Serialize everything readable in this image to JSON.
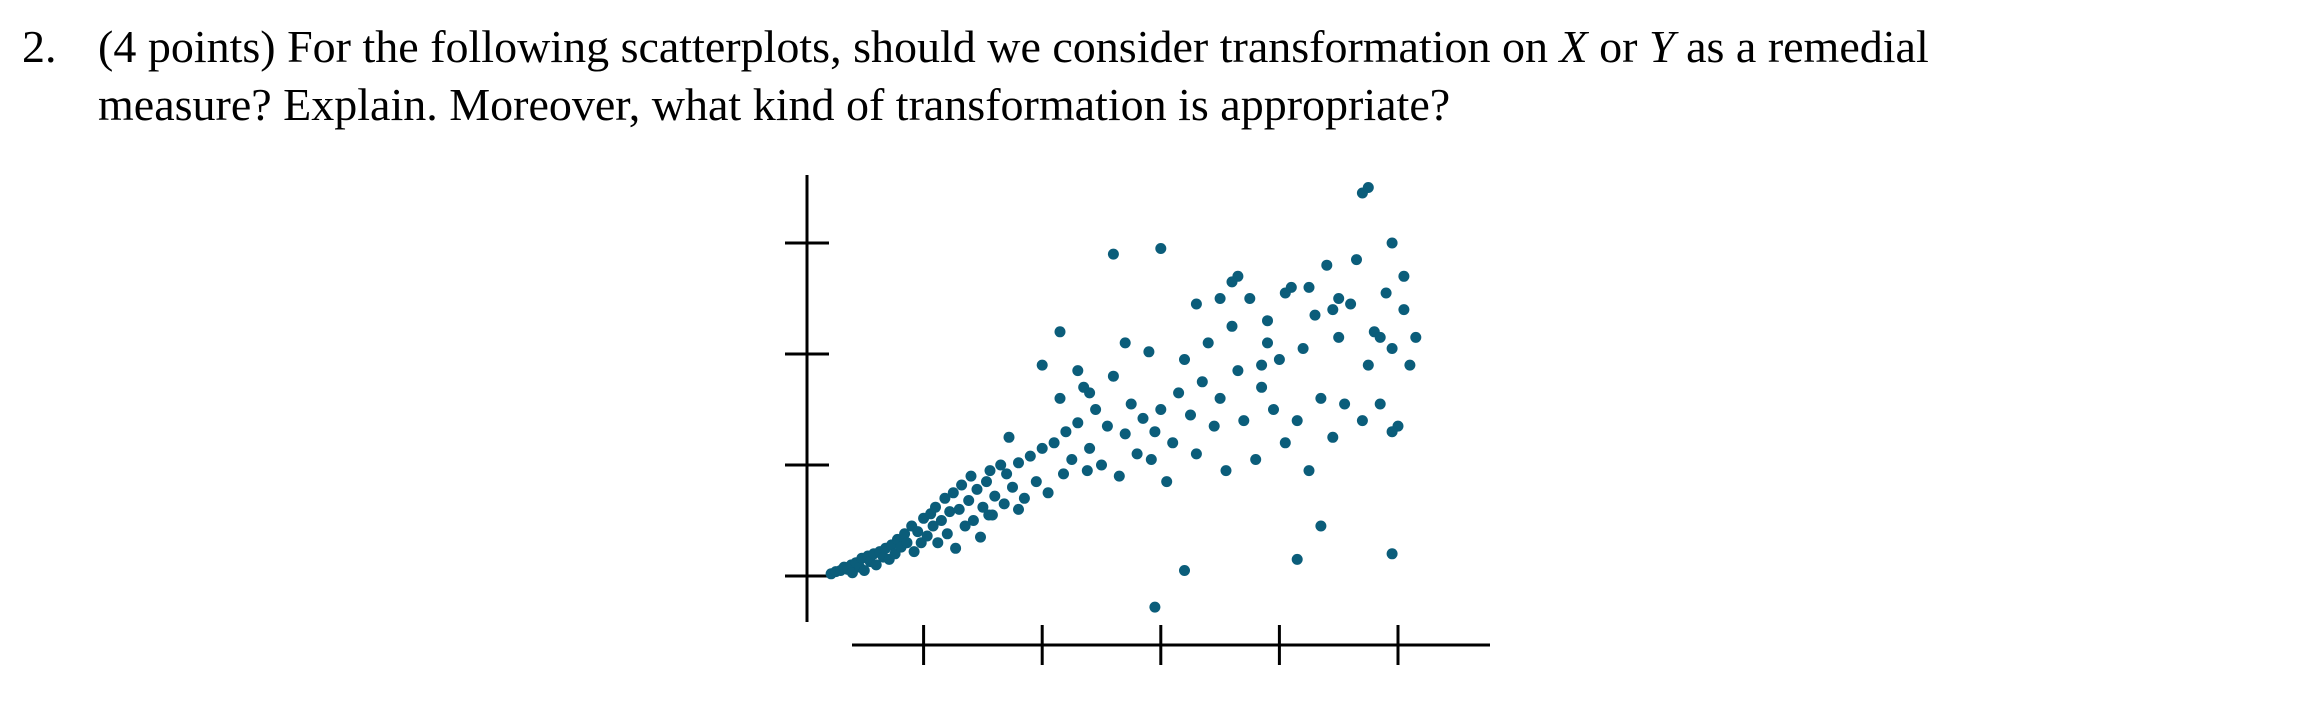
{
  "question": {
    "number": "2.",
    "line1_part1": "(4 points) For the following scatterplots, should we consider transformation on ",
    "var_x": "X",
    "line1_part2": " or ",
    "var_y": "Y",
    "line1_part3": " as a remedial",
    "line2": "measure? Explain. Moreover, what kind of transformation is appropriate?"
  },
  "colors": {
    "point": "#0b5d7a",
    "axis": "#000000"
  },
  "chart_data": {
    "type": "scatter",
    "title": "",
    "xlabel": "",
    "ylabel": "",
    "x_ticks": [
      1,
      2,
      3,
      4,
      5
    ],
    "y_ticks": [
      1,
      2,
      3,
      4
    ],
    "xlim": [
      0,
      5.4
    ],
    "ylim": [
      0.7,
      4.6
    ],
    "grid": false,
    "legend": "none",
    "points": [
      [
        0.22,
        1.02
      ],
      [
        0.26,
        1.04
      ],
      [
        0.3,
        1.05
      ],
      [
        0.33,
        1.08
      ],
      [
        0.36,
        1.06
      ],
      [
        0.39,
        1.1
      ],
      [
        0.4,
        1.03
      ],
      [
        0.43,
        1.12
      ],
      [
        0.46,
        1.08
      ],
      [
        0.48,
        1.16
      ],
      [
        0.5,
        1.05
      ],
      [
        0.53,
        1.18
      ],
      [
        0.55,
        1.13
      ],
      [
        0.58,
        1.2
      ],
      [
        0.6,
        1.1
      ],
      [
        0.63,
        1.22
      ],
      [
        0.66,
        1.17
      ],
      [
        0.68,
        1.25
      ],
      [
        0.71,
        1.15
      ],
      [
        0.73,
        1.28
      ],
      [
        0.76,
        1.2
      ],
      [
        0.78,
        1.33
      ],
      [
        0.81,
        1.26
      ],
      [
        0.84,
        1.38
      ],
      [
        0.86,
        1.3
      ],
      [
        0.9,
        1.45
      ],
      [
        0.92,
        1.22
      ],
      [
        0.95,
        1.4
      ],
      [
        0.98,
        1.3
      ],
      [
        1.0,
        1.52
      ],
      [
        1.03,
        1.36
      ],
      [
        1.06,
        1.56
      ],
      [
        1.08,
        1.45
      ],
      [
        1.1,
        1.62
      ],
      [
        1.12,
        1.3
      ],
      [
        1.15,
        1.5
      ],
      [
        1.18,
        1.7
      ],
      [
        1.2,
        1.38
      ],
      [
        1.22,
        1.58
      ],
      [
        1.25,
        1.75
      ],
      [
        1.27,
        1.25
      ],
      [
        1.3,
        1.6
      ],
      [
        1.32,
        1.82
      ],
      [
        1.35,
        1.45
      ],
      [
        1.38,
        1.68
      ],
      [
        1.4,
        1.9
      ],
      [
        1.42,
        1.5
      ],
      [
        1.45,
        1.78
      ],
      [
        1.48,
        1.35
      ],
      [
        1.5,
        1.62
      ],
      [
        1.53,
        1.85
      ],
      [
        1.56,
        1.95
      ],
      [
        1.58,
        1.55
      ],
      [
        1.6,
        1.72
      ],
      [
        1.65,
        2.0
      ],
      [
        1.68,
        1.65
      ],
      [
        1.7,
        1.92
      ],
      [
        1.72,
        2.25
      ],
      [
        1.75,
        1.8
      ],
      [
        1.8,
        2.02
      ],
      [
        1.85,
        1.7
      ],
      [
        1.9,
        2.08
      ],
      [
        1.95,
        1.85
      ],
      [
        2.0,
        2.15
      ],
      [
        2.05,
        1.75
      ],
      [
        2.1,
        2.2
      ],
      [
        2.15,
        2.6
      ],
      [
        2.18,
        1.92
      ],
      [
        2.2,
        2.3
      ],
      [
        2.25,
        2.05
      ],
      [
        2.3,
        2.38
      ],
      [
        2.35,
        2.7
      ],
      [
        2.38,
        1.95
      ],
      [
        2.4,
        2.15
      ],
      [
        2.45,
        2.5
      ],
      [
        2.5,
        2.0
      ],
      [
        2.55,
        2.35
      ],
      [
        2.6,
        2.8
      ],
      [
        2.65,
        1.9
      ],
      [
        2.7,
        2.28
      ],
      [
        2.75,
        2.55
      ],
      [
        2.8,
        2.1
      ],
      [
        2.85,
        2.42
      ],
      [
        2.9,
        3.02
      ],
      [
        2.92,
        2.05
      ],
      [
        2.95,
        2.3
      ],
      [
        3.0,
        2.5
      ],
      [
        3.05,
        1.85
      ],
      [
        3.1,
        2.2
      ],
      [
        3.15,
        2.65
      ],
      [
        3.2,
        2.95
      ],
      [
        3.25,
        2.45
      ],
      [
        3.3,
        2.1
      ],
      [
        3.35,
        2.75
      ],
      [
        3.4,
        3.1
      ],
      [
        3.45,
        2.35
      ],
      [
        3.5,
        2.6
      ],
      [
        3.55,
        1.95
      ],
      [
        3.6,
        3.25
      ],
      [
        3.65,
        2.85
      ],
      [
        3.7,
        2.4
      ],
      [
        3.75,
        3.5
      ],
      [
        3.8,
        2.05
      ],
      [
        3.85,
        2.7
      ],
      [
        3.9,
        3.3
      ],
      [
        3.95,
        2.5
      ],
      [
        4.0,
        2.95
      ],
      [
        4.05,
        2.2
      ],
      [
        4.1,
        3.6
      ],
      [
        4.15,
        2.4
      ],
      [
        4.2,
        3.05
      ],
      [
        4.25,
        1.95
      ],
      [
        4.3,
        3.35
      ],
      [
        4.35,
        2.6
      ],
      [
        4.4,
        3.8
      ],
      [
        4.45,
        2.25
      ],
      [
        4.5,
        3.15
      ],
      [
        4.55,
        2.55
      ],
      [
        4.6,
        3.45
      ],
      [
        4.65,
        3.85
      ],
      [
        4.7,
        2.4
      ],
      [
        4.75,
        2.9
      ],
      [
        4.8,
        3.2
      ],
      [
        4.85,
        2.55
      ],
      [
        4.9,
        3.55
      ],
      [
        4.95,
        3.05
      ],
      [
        5.0,
        2.35
      ],
      [
        5.05,
        3.4
      ],
      [
        5.1,
        2.9
      ],
      [
        5.15,
        3.15
      ],
      [
        2.6,
        3.9
      ],
      [
        3.0,
        3.95
      ],
      [
        3.3,
        3.45
      ],
      [
        3.65,
        3.7
      ],
      [
        4.05,
        3.55
      ],
      [
        4.25,
        3.6
      ],
      [
        4.45,
        3.4
      ],
      [
        4.7,
        4.45
      ],
      [
        4.75,
        4.5
      ],
      [
        4.95,
        4.0
      ],
      [
        5.05,
        3.7
      ],
      [
        3.6,
        3.65
      ],
      [
        2.15,
        3.2
      ],
      [
        2.0,
        2.9
      ],
      [
        2.4,
        2.65
      ],
      [
        3.85,
        2.9
      ],
      [
        4.15,
        1.15
      ],
      [
        4.95,
        1.2
      ],
      [
        4.95,
        2.3
      ],
      [
        4.35,
        1.45
      ],
      [
        2.95,
        0.72
      ],
      [
        3.2,
        1.05
      ],
      [
        1.55,
        1.55
      ],
      [
        1.8,
        1.6
      ],
      [
        2.3,
        2.85
      ],
      [
        2.7,
        3.1
      ],
      [
        3.5,
        3.5
      ],
      [
        3.9,
        3.1
      ],
      [
        4.5,
        3.5
      ],
      [
        4.85,
        3.15
      ]
    ]
  }
}
